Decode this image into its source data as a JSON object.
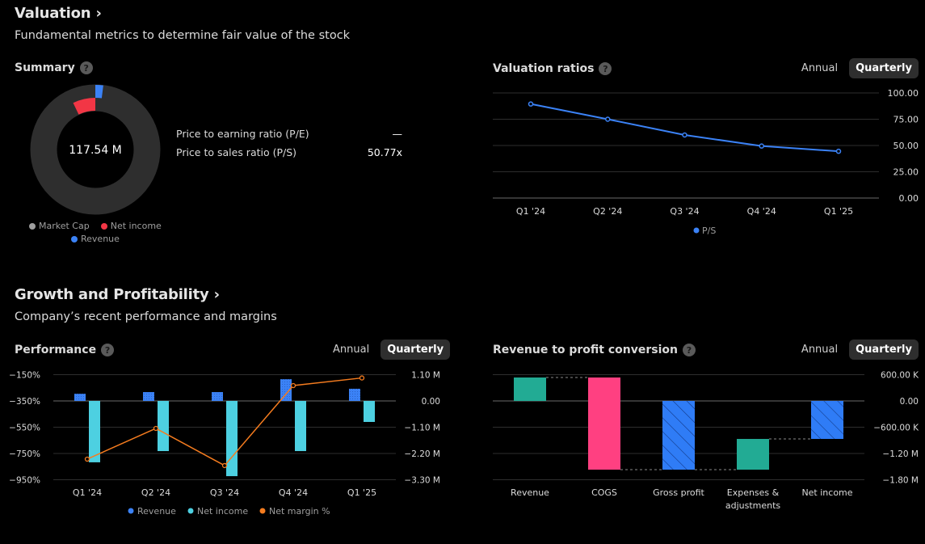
{
  "valuation": {
    "title": "Valuation",
    "chevron": "›",
    "subtitle": "Fundamental metrics to determine fair value of the stock",
    "summary": {
      "title": "Summary",
      "help_icon": "?",
      "center_value": "117.54 M",
      "ratios": [
        {
          "label": "Price to earning ratio (P/E)",
          "value": "—"
        },
        {
          "label": "Price to sales ratio (P/S)",
          "value": "50.77x"
        }
      ],
      "legend": [
        {
          "label": "Market Cap",
          "color": "#9e9e9e"
        },
        {
          "label": "Net income",
          "color": "#f23645"
        },
        {
          "label": "Revenue",
          "color": "#3b82f6"
        }
      ]
    },
    "ratios_panel": {
      "title": "Valuation ratios",
      "help_icon": "?",
      "toggle": {
        "annual": "Annual",
        "quarterly": "Quarterly",
        "active": "quarterly"
      }
    }
  },
  "growth": {
    "title": "Growth and Profitability",
    "chevron": "›",
    "subtitle": "Company’s recent performance and margins",
    "performance": {
      "title": "Performance",
      "help_icon": "?",
      "toggle": {
        "annual": "Annual",
        "quarterly": "Quarterly",
        "active": "quarterly"
      }
    },
    "conversion": {
      "title": "Revenue to profit conversion",
      "help_icon": "?",
      "toggle": {
        "annual": "Annual",
        "quarterly": "Quarterly",
        "active": "quarterly"
      }
    }
  },
  "chart_data": [
    {
      "id": "summary",
      "type": "pie",
      "title": "Summary",
      "center_label": "117.54 M",
      "series": [
        {
          "name": "Market Cap",
          "value": 117.54,
          "unit": "M",
          "color": "#2e2e2e"
        },
        {
          "name": "Revenue",
          "value": 2.32,
          "unit": "M",
          "color": "#3b82f6"
        },
        {
          "name": "Net income",
          "value": -8.3,
          "unit": "M",
          "color": "#f23645"
        }
      ],
      "legend": [
        "Market Cap",
        "Net income",
        "Revenue"
      ]
    },
    {
      "id": "valuation_ratios",
      "type": "line",
      "title": "Valuation ratios",
      "categories": [
        "Q1 '24",
        "Q2 '24",
        "Q3 '24",
        "Q4 '24",
        "Q1 '25"
      ],
      "series": [
        {
          "name": "P/S",
          "values": [
            89.5,
            75.0,
            60.0,
            49.5,
            44.5
          ],
          "color": "#3b82f6"
        }
      ],
      "ylim": [
        0,
        100
      ],
      "yticks": [
        "100.00",
        "75.00",
        "50.00",
        "25.00",
        "0.00"
      ],
      "ytick_values": [
        100,
        75,
        50,
        25,
        0
      ],
      "legend": "bottom-center",
      "grid": true
    },
    {
      "id": "performance",
      "type": "bar",
      "title": "Performance",
      "categories": [
        "Q1 '24",
        "Q2 '24",
        "Q3 '24",
        "Q4 '24",
        "Q1 '25"
      ],
      "series": [
        {
          "name": "Revenue",
          "axis": "right",
          "unit": "M",
          "values": [
            0.3,
            0.37,
            0.37,
            0.91,
            0.51
          ],
          "color": "#3b82f6"
        },
        {
          "name": "Net income",
          "axis": "right",
          "unit": "M",
          "values": [
            -2.57,
            -2.1,
            -3.15,
            -2.1,
            -0.88
          ],
          "color": "#4dd0e1"
        },
        {
          "name": "Net margin %",
          "axis": "left",
          "type": "line",
          "unit": "%",
          "values": [
            -793,
            -559,
            -842,
            -233,
            -175
          ],
          "color": "#f57c1f"
        }
      ],
      "y_left": {
        "ticks": [
          "−150%",
          "−350%",
          "−550%",
          "−750%",
          "−950%"
        ],
        "values": [
          -150,
          -350,
          -550,
          -750,
          -950
        ]
      },
      "y_right": {
        "ticks": [
          "1.10 M",
          "0.00",
          "−1.10 M",
          "−2.20 M",
          "−3.30 M"
        ],
        "values": [
          1.1,
          0,
          -1.1,
          -2.2,
          -3.3
        ]
      },
      "legend": "bottom-center",
      "grid": true
    },
    {
      "id": "revenue_to_profit",
      "type": "bar",
      "subtype": "waterfall",
      "title": "Revenue to profit conversion",
      "categories": [
        "Revenue",
        "COGS",
        "Gross profit",
        "Expenses & adjustments",
        "Net income"
      ],
      "category_lines": [
        [
          "Revenue"
        ],
        [
          "COGS"
        ],
        [
          "Gross profit"
        ],
        [
          "Expenses &",
          "adjustments"
        ],
        [
          "Net income"
        ]
      ],
      "steps": [
        {
          "name": "Revenue",
          "from": 0,
          "to": 535,
          "kind": "increase",
          "color": "#22ab94"
        },
        {
          "name": "COGS",
          "from": 535,
          "to": -1570,
          "kind": "decrease",
          "color": "#ff4081"
        },
        {
          "name": "Gross profit",
          "from": 0,
          "to": -1570,
          "kind": "total",
          "color": "#2f7cf6"
        },
        {
          "name": "Expenses & adjustments",
          "from": -1570,
          "to": -868,
          "kind": "increase",
          "color": "#22ab94"
        },
        {
          "name": "Net income",
          "from": 0,
          "to": -868,
          "kind": "total",
          "color": "#2f7cf6"
        }
      ],
      "unit": "K",
      "yticks": [
        "600.00 K",
        "0.00",
        "−600.00 K",
        "−1.20 M",
        "−1.80 M"
      ],
      "ytick_values": [
        600,
        0,
        -600,
        -1200,
        -1800
      ],
      "grid": true
    }
  ]
}
